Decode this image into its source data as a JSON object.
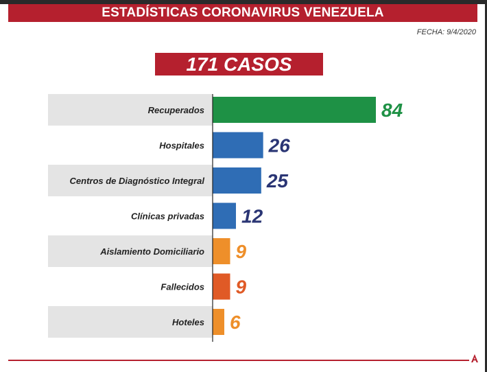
{
  "header": {
    "title": "ESTADÍSTICAS CORONAVIRUS VENEZUELA",
    "fecha": "FECHA: 9/4/2020",
    "cases": "171 CASOS"
  },
  "logo_text": "A",
  "chart_data": {
    "type": "bar",
    "orientation": "horizontal",
    "categories": [
      "Recuperados",
      "Hospitales",
      "Centros de Diagnóstico Integral",
      "Clínicas privadas",
      "Aislamiento Domiciliario",
      "Fallecidos",
      "Hoteles"
    ],
    "values": [
      84,
      26,
      25,
      12,
      9,
      9,
      6
    ],
    "data_labels": [
      "84",
      "26",
      "25",
      "12",
      "9",
      "9",
      "6"
    ],
    "bar_colors": [
      "#1e9145",
      "#2f6db5",
      "#2f6db5",
      "#2f6db5",
      "#ee8f2a",
      "#e05a26",
      "#ee8f2a"
    ],
    "label_colors": [
      "#1e9145",
      "#2a3574",
      "#2a3574",
      "#2a3574",
      "#ee8f2a",
      "#e05a26",
      "#ee8f2a"
    ],
    "xlim": [
      0,
      84
    ],
    "grid": false,
    "legend": "none"
  }
}
